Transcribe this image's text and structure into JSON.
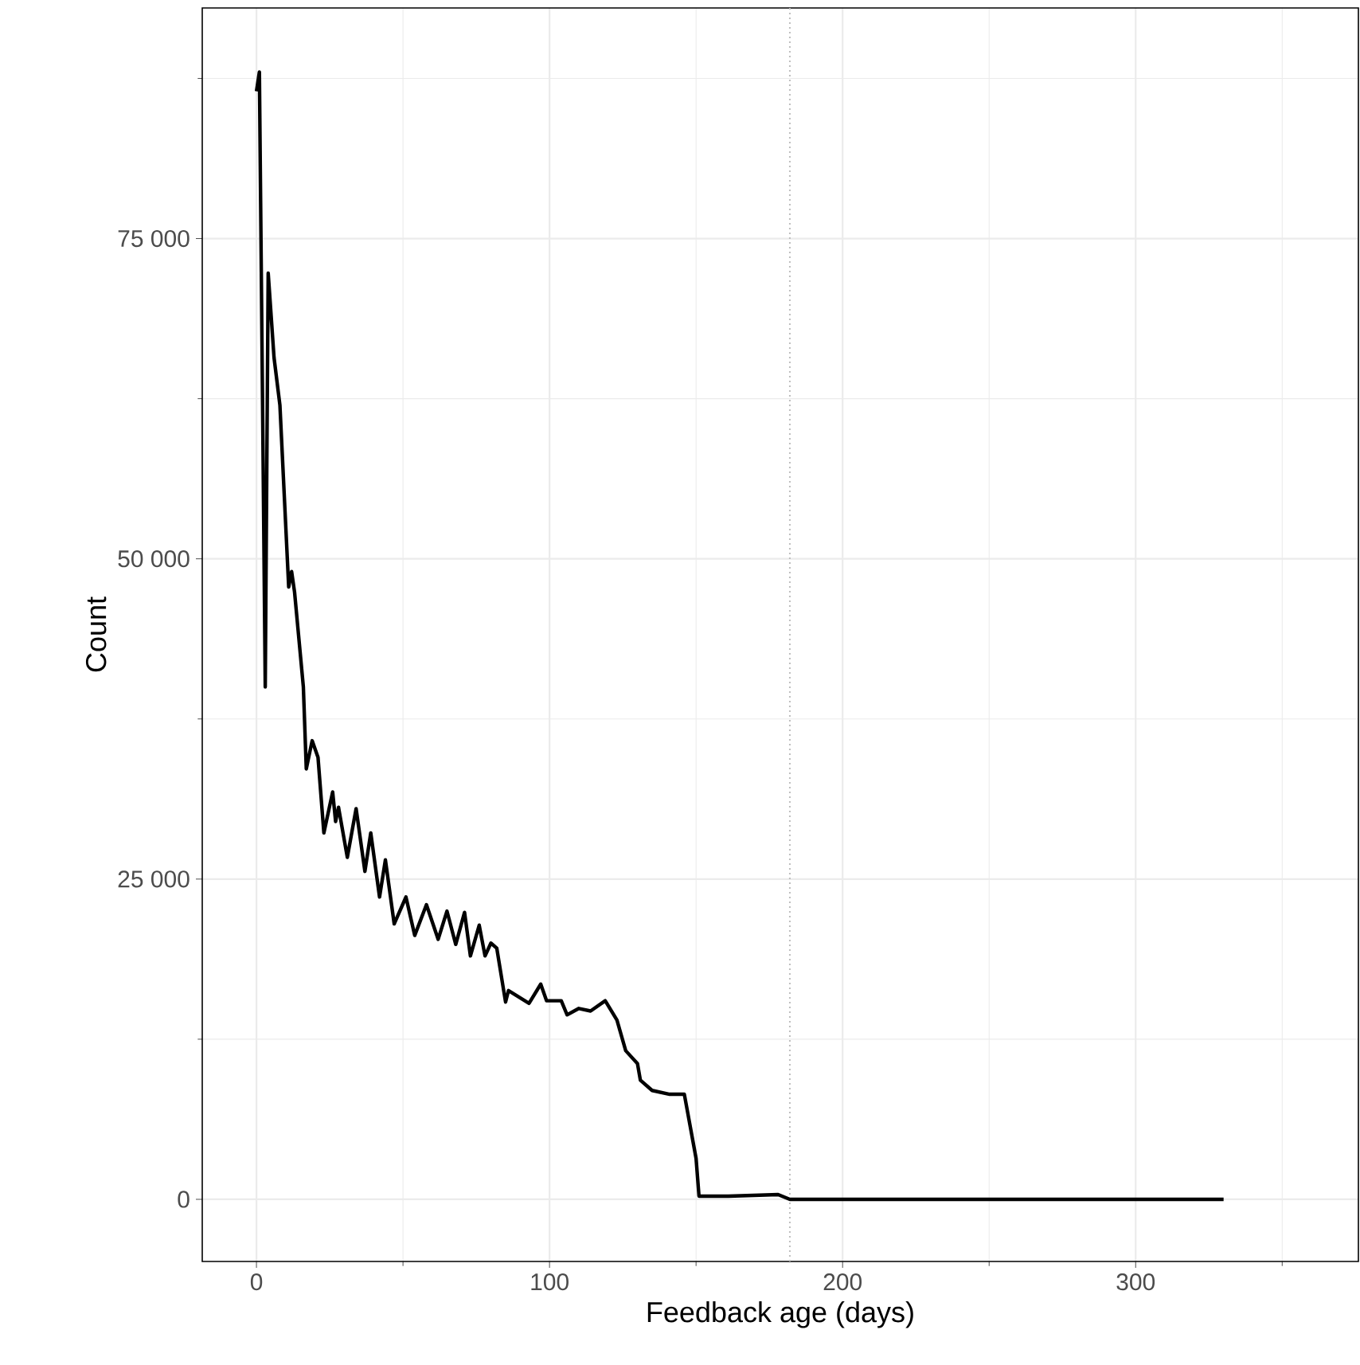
{
  "chart_data": {
    "type": "line",
    "xlabel": "Feedback age (days)",
    "ylabel": "Count",
    "x": [
      0,
      1,
      3,
      4,
      6,
      8,
      11,
      12,
      13,
      16,
      17,
      19,
      21,
      23,
      26,
      27,
      28,
      31,
      34,
      37,
      39,
      42,
      44,
      47,
      51,
      54,
      58,
      62,
      65,
      68,
      71,
      73,
      76,
      78,
      80,
      82,
      85,
      86,
      93,
      97,
      99,
      104,
      106,
      110,
      114,
      119,
      123,
      126,
      130,
      131,
      135,
      141,
      146,
      150,
      151,
      154,
      161,
      178,
      182,
      330
    ],
    "series": [
      {
        "color": "#000000",
        "values": [
          86500,
          88000,
          40000,
          72300,
          65700,
          62000,
          47800,
          49000,
          47400,
          40000,
          33600,
          35800,
          34500,
          28600,
          31800,
          29500,
          30600,
          26700,
          30500,
          25600,
          28600,
          23600,
          26500,
          21500,
          23600,
          20600,
          23000,
          20300,
          22500,
          19900,
          22400,
          19000,
          21400,
          19000,
          20000,
          19600,
          15400,
          16300,
          15300,
          16800,
          15500,
          15500,
          14400,
          14900,
          14700,
          15500,
          14000,
          11600,
          10600,
          9300,
          8500,
          8200,
          8200,
          3200,
          250,
          250,
          250,
          370,
          0,
          0
        ]
      }
    ],
    "xlim": [
      -18.5,
      376
    ],
    "ylim": [
      -4850,
      93000
    ],
    "xticks": [
      0,
      100,
      200,
      300
    ],
    "yticks": [
      {
        "value": 0,
        "label": "0"
      },
      {
        "value": 25000,
        "label": "25 000"
      },
      {
        "value": 50000,
        "label": "50 000"
      },
      {
        "value": 75000,
        "label": "75 000"
      }
    ],
    "grid": true,
    "ref_lines": [
      {
        "axis": "x",
        "value": 182,
        "color": "#bebebe",
        "line_style": "dotted"
      }
    ]
  }
}
